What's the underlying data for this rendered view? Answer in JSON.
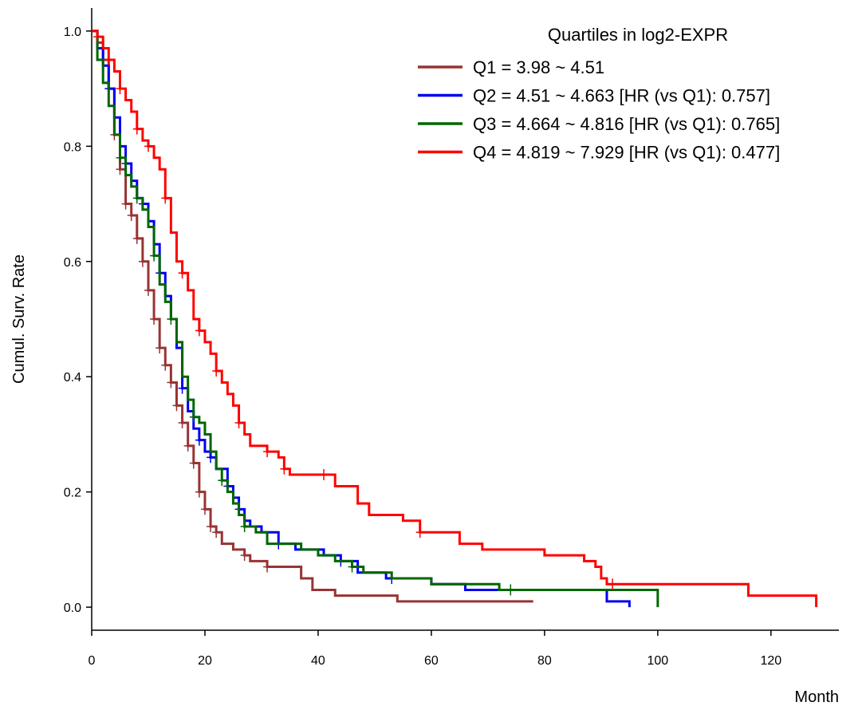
{
  "chart_data": {
    "type": "line",
    "title": "",
    "xlabel": "Month",
    "ylabel": "Cumul. Surv. Rate",
    "xlim": [
      0,
      132
    ],
    "ylim": [
      -0.04,
      1.04
    ],
    "x_ticks": [
      "0",
      "20",
      "40",
      "60",
      "80",
      "100",
      "120"
    ],
    "x_tick_values": [
      0,
      20,
      40,
      60,
      80,
      100,
      120
    ],
    "y_ticks": [
      "0.0",
      "0.2",
      "0.4",
      "0.6",
      "0.8",
      "1.0"
    ],
    "y_tick_values": [
      0.0,
      0.2,
      0.4,
      0.6,
      0.8,
      1.0
    ],
    "grid": false,
    "legend": {
      "title": "Quartiles in log2-EXPR",
      "placement": "top-right"
    },
    "series": [
      {
        "name": "Q1 = 3.98 ~ 4.51",
        "color": "#993333",
        "steps": [
          [
            0,
            1.0
          ],
          [
            1,
            0.98
          ],
          [
            2,
            0.95
          ],
          [
            3,
            0.9
          ],
          [
            4,
            0.82
          ],
          [
            5,
            0.76
          ],
          [
            6,
            0.7
          ],
          [
            7,
            0.68
          ],
          [
            8,
            0.64
          ],
          [
            9,
            0.6
          ],
          [
            10,
            0.55
          ],
          [
            11,
            0.5
          ],
          [
            12,
            0.45
          ],
          [
            13,
            0.42
          ],
          [
            14,
            0.39
          ],
          [
            15,
            0.35
          ],
          [
            16,
            0.32
          ],
          [
            17,
            0.28
          ],
          [
            18,
            0.25
          ],
          [
            19,
            0.2
          ],
          [
            20,
            0.17
          ],
          [
            21,
            0.14
          ],
          [
            22,
            0.13
          ],
          [
            23,
            0.11
          ],
          [
            25,
            0.1
          ],
          [
            27,
            0.09
          ],
          [
            28,
            0.08
          ],
          [
            31,
            0.07
          ],
          [
            37,
            0.05
          ],
          [
            39,
            0.03
          ],
          [
            43,
            0.02
          ],
          [
            54,
            0.01
          ],
          [
            78,
            0.01
          ]
        ],
        "censor_x": [
          4,
          5,
          6,
          7,
          8,
          9,
          10,
          11,
          12,
          13,
          14,
          15,
          16,
          17,
          18,
          19,
          20,
          21,
          22,
          27,
          31
        ]
      },
      {
        "name": "Q2 = 4.51 ~ 4.663 [HR (vs Q1): 0.757]",
        "color": "#0000ee",
        "steps": [
          [
            0,
            1.0
          ],
          [
            1,
            0.97
          ],
          [
            2,
            0.94
          ],
          [
            3,
            0.9
          ],
          [
            4,
            0.85
          ],
          [
            5,
            0.8
          ],
          [
            6,
            0.77
          ],
          [
            7,
            0.74
          ],
          [
            8,
            0.71
          ],
          [
            9,
            0.7
          ],
          [
            10,
            0.67
          ],
          [
            11,
            0.63
          ],
          [
            12,
            0.58
          ],
          [
            13,
            0.54
          ],
          [
            14,
            0.5
          ],
          [
            15,
            0.45
          ],
          [
            16,
            0.38
          ],
          [
            17,
            0.34
          ],
          [
            18,
            0.31
          ],
          [
            19,
            0.29
          ],
          [
            20,
            0.27
          ],
          [
            21,
            0.26
          ],
          [
            22,
            0.24
          ],
          [
            24,
            0.21
          ],
          [
            25,
            0.19
          ],
          [
            26,
            0.17
          ],
          [
            27,
            0.15
          ],
          [
            28,
            0.14
          ],
          [
            30,
            0.13
          ],
          [
            33,
            0.11
          ],
          [
            36,
            0.1
          ],
          [
            41,
            0.09
          ],
          [
            44,
            0.08
          ],
          [
            47,
            0.06
          ],
          [
            52,
            0.05
          ],
          [
            60,
            0.04
          ],
          [
            66,
            0.03
          ],
          [
            91,
            0.01
          ],
          [
            95,
            0.0
          ]
        ],
        "censor_x": [
          3,
          6,
          9,
          12,
          16,
          19,
          21,
          24,
          26,
          33,
          44,
          53
        ]
      },
      {
        "name": "Q3 = 4.664 ~ 4.816 [HR (vs Q1): 0.765]",
        "color": "#006600",
        "steps": [
          [
            0,
            1.0
          ],
          [
            1,
            0.95
          ],
          [
            2,
            0.91
          ],
          [
            3,
            0.87
          ],
          [
            4,
            0.82
          ],
          [
            5,
            0.78
          ],
          [
            6,
            0.75
          ],
          [
            7,
            0.73
          ],
          [
            8,
            0.71
          ],
          [
            9,
            0.69
          ],
          [
            10,
            0.66
          ],
          [
            11,
            0.61
          ],
          [
            12,
            0.56
          ],
          [
            13,
            0.53
          ],
          [
            14,
            0.5
          ],
          [
            15,
            0.46
          ],
          [
            16,
            0.4
          ],
          [
            17,
            0.36
          ],
          [
            18,
            0.33
          ],
          [
            19,
            0.32
          ],
          [
            20,
            0.3
          ],
          [
            21,
            0.27
          ],
          [
            22,
            0.24
          ],
          [
            23,
            0.22
          ],
          [
            24,
            0.2
          ],
          [
            25,
            0.18
          ],
          [
            26,
            0.16
          ],
          [
            27,
            0.14
          ],
          [
            29,
            0.13
          ],
          [
            31,
            0.11
          ],
          [
            37,
            0.1
          ],
          [
            40,
            0.09
          ],
          [
            43,
            0.08
          ],
          [
            46,
            0.07
          ],
          [
            48,
            0.06
          ],
          [
            53,
            0.05
          ],
          [
            60,
            0.04
          ],
          [
            72,
            0.03
          ],
          [
            100,
            0.0
          ]
        ],
        "censor_x": [
          5,
          8,
          11,
          14,
          18,
          23,
          27,
          46,
          74
        ]
      },
      {
        "name": "Q4 = 4.819 ~ 7.929 [HR (vs Q1): 0.477]",
        "color": "#ff0000",
        "steps": [
          [
            0,
            1.0
          ],
          [
            1,
            0.99
          ],
          [
            2,
            0.97
          ],
          [
            3,
            0.95
          ],
          [
            4,
            0.93
          ],
          [
            5,
            0.9
          ],
          [
            6,
            0.88
          ],
          [
            7,
            0.86
          ],
          [
            8,
            0.83
          ],
          [
            9,
            0.81
          ],
          [
            10,
            0.8
          ],
          [
            11,
            0.78
          ],
          [
            12,
            0.76
          ],
          [
            13,
            0.71
          ],
          [
            14,
            0.65
          ],
          [
            15,
            0.6
          ],
          [
            16,
            0.58
          ],
          [
            17,
            0.55
          ],
          [
            18,
            0.5
          ],
          [
            19,
            0.48
          ],
          [
            20,
            0.46
          ],
          [
            21,
            0.44
          ],
          [
            22,
            0.41
          ],
          [
            23,
            0.39
          ],
          [
            24,
            0.37
          ],
          [
            25,
            0.35
          ],
          [
            26,
            0.32
          ],
          [
            27,
            0.3
          ],
          [
            28,
            0.28
          ],
          [
            31,
            0.27
          ],
          [
            33,
            0.26
          ],
          [
            34,
            0.24
          ],
          [
            35,
            0.23
          ],
          [
            43,
            0.21
          ],
          [
            47,
            0.18
          ],
          [
            49,
            0.16
          ],
          [
            55,
            0.15
          ],
          [
            58,
            0.13
          ],
          [
            65,
            0.11
          ],
          [
            69,
            0.1
          ],
          [
            80,
            0.09
          ],
          [
            87,
            0.08
          ],
          [
            89,
            0.07
          ],
          [
            90,
            0.05
          ],
          [
            91,
            0.04
          ],
          [
            116,
            0.02
          ],
          [
            128,
            0.0
          ]
        ],
        "censor_x": [
          1,
          3,
          5,
          8,
          10,
          13,
          16,
          19,
          22,
          26,
          31,
          34,
          41,
          58,
          92
        ]
      }
    ]
  }
}
